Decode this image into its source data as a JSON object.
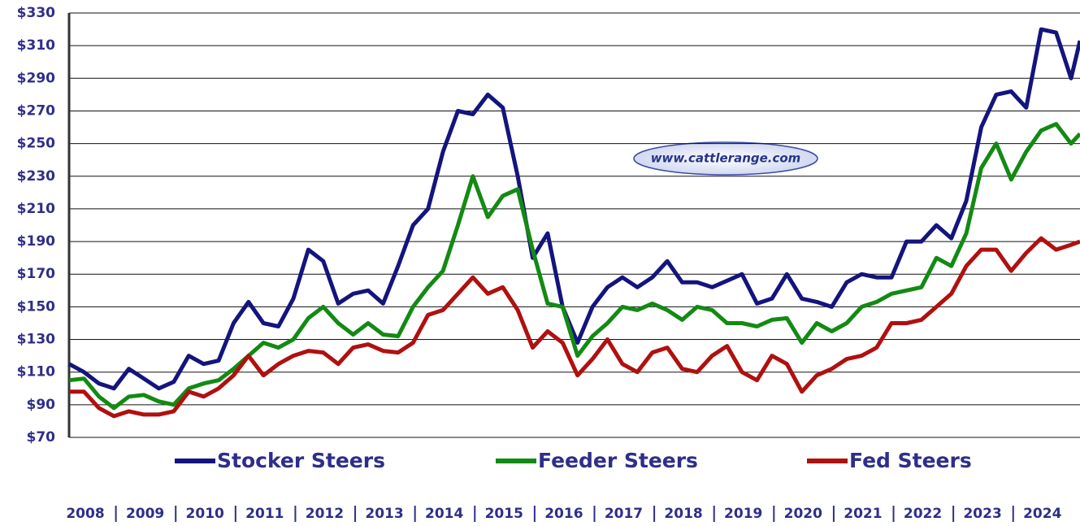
{
  "chart_data": {
    "type": "line",
    "watermark": "www.cattlerange.com",
    "x": [
      2008,
      2008.25,
      2008.5,
      2008.75,
      2009,
      2009.25,
      2009.5,
      2009.75,
      2010,
      2010.25,
      2010.5,
      2010.75,
      2011,
      2011.25,
      2011.5,
      2011.75,
      2012,
      2012.25,
      2012.5,
      2012.75,
      2013,
      2013.25,
      2013.5,
      2013.75,
      2014,
      2014.25,
      2014.5,
      2014.75,
      2015,
      2015.25,
      2015.5,
      2015.75,
      2016,
      2016.25,
      2016.5,
      2016.75,
      2017,
      2017.25,
      2017.5,
      2017.75,
      2018,
      2018.25,
      2018.5,
      2018.75,
      2019,
      2019.25,
      2019.5,
      2019.75,
      2020,
      2020.25,
      2020.5,
      2020.75,
      2021,
      2021.25,
      2021.5,
      2021.75,
      2022,
      2022.25,
      2022.5,
      2022.75,
      2023,
      2023.25,
      2023.5,
      2023.75,
      2024,
      2024.25,
      2024.5,
      2024.75,
      2024.9
    ],
    "series": [
      {
        "name": "Stocker Steers",
        "color": "#14147e",
        "values": [
          115,
          110,
          103,
          100,
          112,
          106,
          100,
          104,
          120,
          115,
          117,
          140,
          153,
          140,
          138,
          155,
          185,
          178,
          152,
          158,
          160,
          152,
          175,
          200,
          210,
          245,
          270,
          268,
          280,
          272,
          230,
          180,
          195,
          150,
          128,
          150,
          162,
          168,
          162,
          168,
          178,
          165,
          165,
          162,
          166,
          170,
          152,
          155,
          170,
          155,
          153,
          150,
          165,
          170,
          168,
          168,
          190,
          190,
          200,
          192,
          215,
          260,
          280,
          282,
          272,
          320,
          318,
          290,
          313
        ]
      },
      {
        "name": "Feeder Steers",
        "color": "#138a13",
        "values": [
          105,
          106,
          95,
          88,
          95,
          96,
          92,
          90,
          100,
          103,
          105,
          112,
          120,
          128,
          125,
          130,
          143,
          150,
          140,
          133,
          140,
          133,
          132,
          150,
          162,
          172,
          200,
          230,
          205,
          218,
          222,
          185,
          152,
          150,
          120,
          132,
          140,
          150,
          148,
          152,
          148,
          142,
          150,
          148,
          140,
          140,
          138,
          142,
          143,
          128,
          140,
          135,
          140,
          150,
          153,
          158,
          160,
          162,
          180,
          175,
          195,
          235,
          250,
          228,
          245,
          258,
          262,
          250,
          256
        ]
      },
      {
        "name": "Fed Steers",
        "color": "#b01010",
        "values": [
          98,
          98,
          88,
          83,
          86,
          84,
          84,
          86,
          98,
          95,
          100,
          108,
          120,
          108,
          115,
          120,
          123,
          122,
          115,
          125,
          127,
          123,
          122,
          128,
          145,
          148,
          158,
          168,
          158,
          162,
          148,
          125,
          135,
          128,
          108,
          118,
          130,
          115,
          110,
          122,
          125,
          112,
          110,
          120,
          126,
          110,
          105,
          120,
          115,
          98,
          108,
          112,
          118,
          120,
          125,
          140,
          140,
          142,
          150,
          158,
          175,
          185,
          185,
          172,
          183,
          192,
          185,
          188,
          190
        ]
      }
    ],
    "xlim": [
      2008,
      2024.9
    ],
    "xticks": [
      2008,
      2009,
      2010,
      2011,
      2012,
      2013,
      2014,
      2015,
      2016,
      2017,
      2018,
      2019,
      2020,
      2021,
      2022,
      2023,
      2024
    ],
    "ylim": [
      70,
      330
    ],
    "yticks": [
      {
        "value": 70,
        "label": "$70"
      },
      {
        "value": 90,
        "label": "$90"
      },
      {
        "value": 110,
        "label": "$110"
      },
      {
        "value": 130,
        "label": "$130"
      },
      {
        "value": 150,
        "label": "$150"
      },
      {
        "value": 170,
        "label": "$170"
      },
      {
        "value": 190,
        "label": "$190"
      },
      {
        "value": 210,
        "label": "$210"
      },
      {
        "value": 230,
        "label": "$230"
      },
      {
        "value": 250,
        "label": "$250"
      },
      {
        "value": 270,
        "label": "$270"
      },
      {
        "value": 290,
        "label": "$290"
      },
      {
        "value": 310,
        "label": "$310"
      },
      {
        "value": 330,
        "label": "$330"
      }
    ],
    "grid": true
  }
}
